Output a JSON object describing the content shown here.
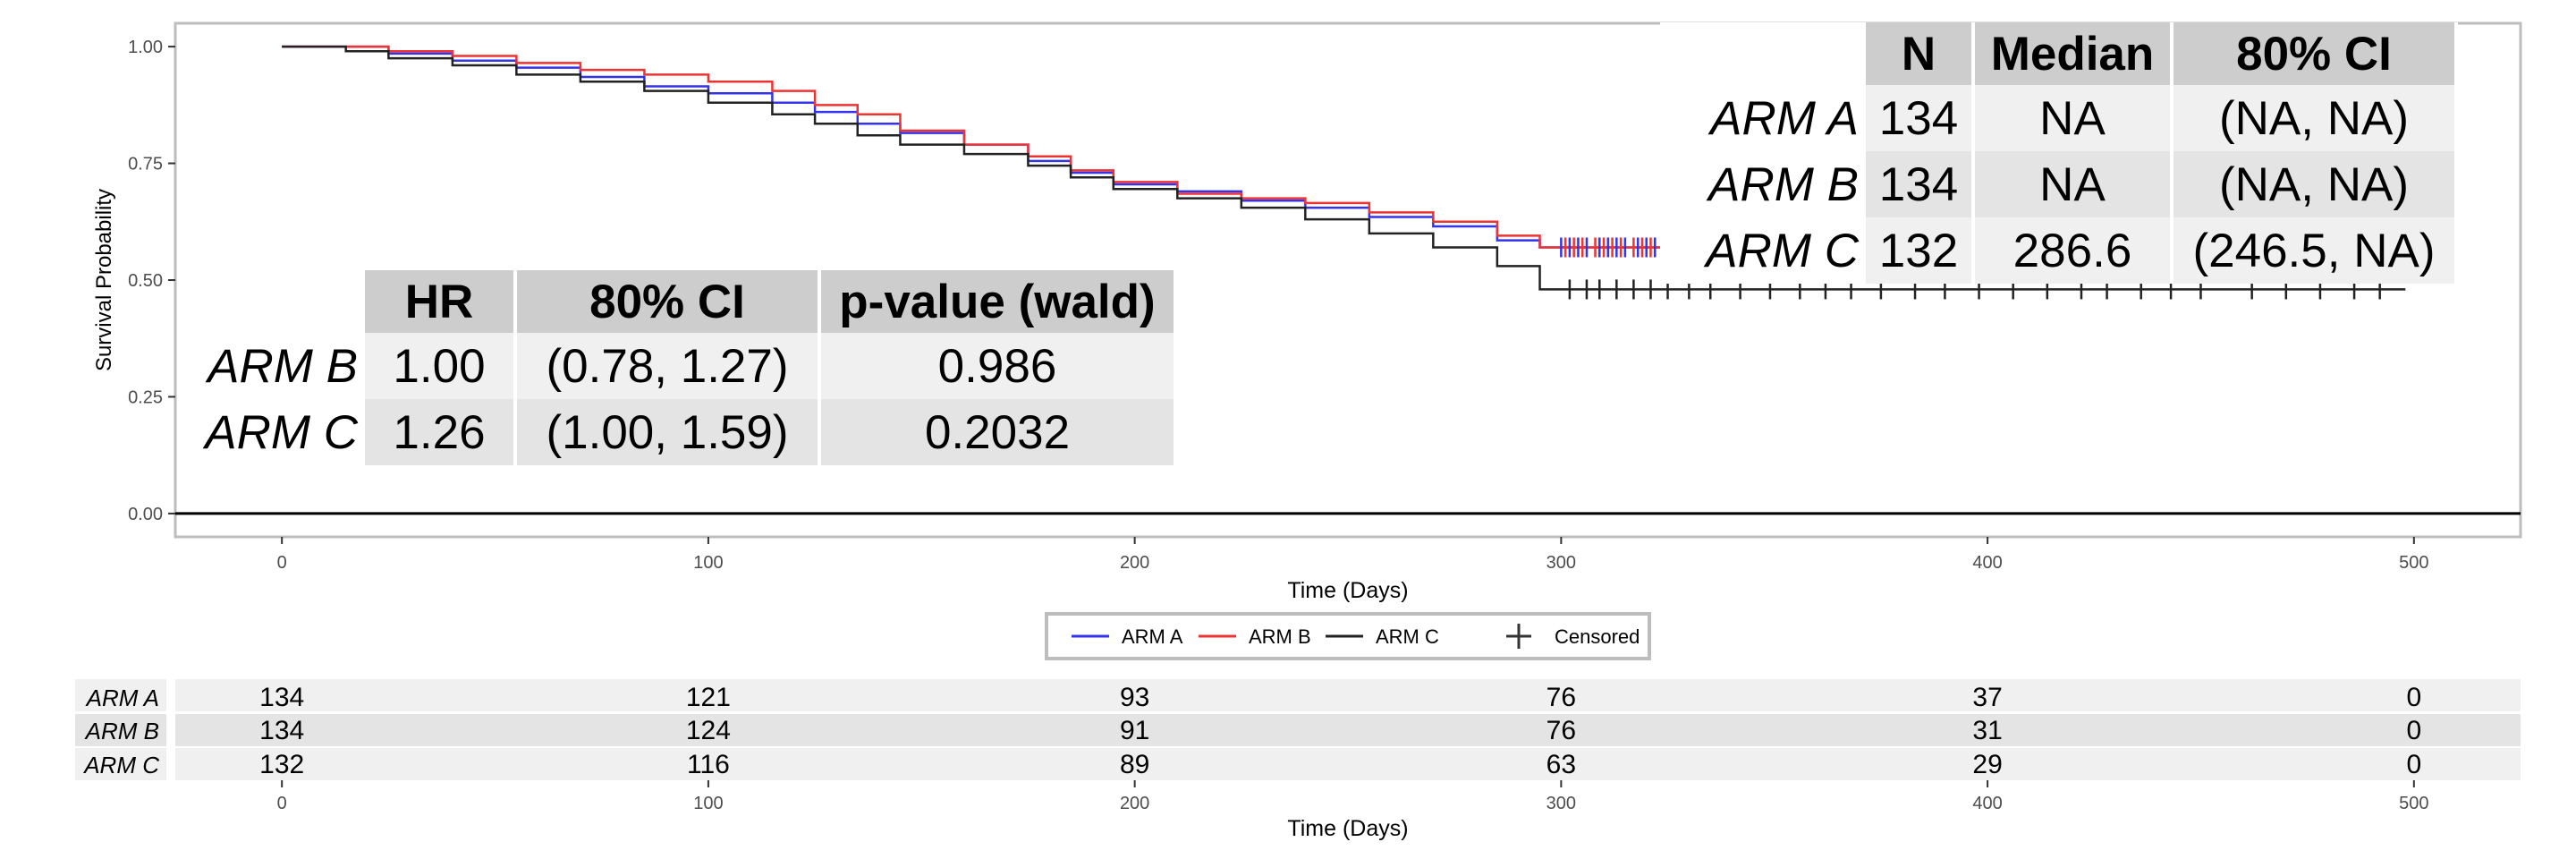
{
  "chart_data": {
    "type": "line",
    "subtype": "kaplan-meier",
    "xlabel": "Time (Days)",
    "ylabel": "Survival Probability",
    "xlim": [
      -25,
      525
    ],
    "ylim": [
      -0.05,
      1.05
    ],
    "x_ticks": [
      0,
      100,
      200,
      300,
      400,
      500
    ],
    "y_ticks": [
      0.0,
      0.25,
      0.5,
      0.75,
      1.0
    ],
    "y_tick_labels": [
      "0.00",
      "0.25",
      "0.50",
      "0.75",
      "1.00"
    ],
    "grid": false,
    "legend": {
      "position": "bottom",
      "entries": [
        {
          "name": "ARM A",
          "color": "#3333ee"
        },
        {
          "name": "ARM B",
          "color": "#ee3333"
        },
        {
          "name": "ARM C",
          "color": "#222222"
        },
        {
          "name": "Censored",
          "marker": "plus"
        }
      ]
    },
    "series": [
      {
        "name": "ARM A",
        "color": "#3333ee",
        "points": [
          [
            0,
            1.0
          ],
          [
            15,
            1.0
          ],
          [
            25,
            0.985
          ],
          [
            40,
            0.97
          ],
          [
            55,
            0.955
          ],
          [
            70,
            0.935
          ],
          [
            85,
            0.915
          ],
          [
            100,
            0.9
          ],
          [
            115,
            0.88
          ],
          [
            125,
            0.86
          ],
          [
            135,
            0.835
          ],
          [
            145,
            0.815
          ],
          [
            160,
            0.79
          ],
          [
            175,
            0.755
          ],
          [
            185,
            0.73
          ],
          [
            195,
            0.705
          ],
          [
            210,
            0.69
          ],
          [
            225,
            0.67
          ],
          [
            240,
            0.655
          ],
          [
            255,
            0.635
          ],
          [
            270,
            0.615
          ],
          [
            285,
            0.585
          ],
          [
            295,
            0.57
          ],
          [
            320,
            0.57
          ],
          [
            368,
            0.57
          ]
        ],
        "censored_x": [
          300,
          302,
          304,
          306,
          309,
          311,
          313,
          315,
          318,
          320,
          322,
          325,
          327,
          329,
          332,
          334,
          337,
          339,
          341,
          344,
          346,
          349,
          352,
          355,
          358,
          361,
          364,
          367
        ]
      },
      {
        "name": "ARM B",
        "color": "#ee3333",
        "points": [
          [
            0,
            1.0
          ],
          [
            15,
            1.0
          ],
          [
            25,
            0.99
          ],
          [
            40,
            0.98
          ],
          [
            55,
            0.965
          ],
          [
            70,
            0.95
          ],
          [
            85,
            0.94
          ],
          [
            100,
            0.925
          ],
          [
            115,
            0.905
          ],
          [
            125,
            0.875
          ],
          [
            135,
            0.855
          ],
          [
            145,
            0.82
          ],
          [
            160,
            0.79
          ],
          [
            175,
            0.765
          ],
          [
            185,
            0.735
          ],
          [
            195,
            0.71
          ],
          [
            210,
            0.685
          ],
          [
            225,
            0.675
          ],
          [
            240,
            0.665
          ],
          [
            255,
            0.645
          ],
          [
            270,
            0.625
          ],
          [
            285,
            0.595
          ],
          [
            295,
            0.57
          ],
          [
            320,
            0.57
          ],
          [
            368,
            0.57
          ]
        ],
        "censored_x": [
          301,
          303,
          305,
          308,
          310,
          312,
          314,
          317,
          319,
          321,
          324,
          326,
          328,
          331,
          333,
          336,
          338,
          340,
          343,
          345,
          348,
          351,
          354,
          357,
          360,
          363,
          366
        ]
      },
      {
        "name": "ARM C",
        "color": "#222222",
        "points": [
          [
            0,
            1.0
          ],
          [
            15,
            0.99
          ],
          [
            25,
            0.975
          ],
          [
            40,
            0.96
          ],
          [
            55,
            0.94
          ],
          [
            70,
            0.925
          ],
          [
            85,
            0.905
          ],
          [
            100,
            0.88
          ],
          [
            115,
            0.855
          ],
          [
            125,
            0.835
          ],
          [
            135,
            0.81
          ],
          [
            145,
            0.79
          ],
          [
            160,
            0.77
          ],
          [
            175,
            0.745
          ],
          [
            185,
            0.72
          ],
          [
            195,
            0.695
          ],
          [
            210,
            0.675
          ],
          [
            225,
            0.655
          ],
          [
            240,
            0.63
          ],
          [
            255,
            0.6
          ],
          [
            270,
            0.57
          ],
          [
            285,
            0.53
          ],
          [
            295,
            0.48
          ],
          [
            320,
            0.48
          ],
          [
            400,
            0.48
          ],
          [
            498,
            0.48
          ]
        ],
        "censored_x": [
          302,
          306,
          309,
          313,
          317,
          321,
          325,
          330,
          335,
          342,
          349,
          356,
          362,
          368,
          375,
          383,
          390,
          398,
          406,
          414,
          422,
          428,
          436,
          443,
          450,
          462,
          470,
          478,
          486,
          492
        ]
      }
    ],
    "median_table": {
      "headers": [
        "N",
        "Median",
        "80% CI"
      ],
      "rows": [
        {
          "arm": "ARM A",
          "n": "134",
          "median": "NA",
          "ci": "(NA, NA)"
        },
        {
          "arm": "ARM B",
          "n": "134",
          "median": "NA",
          "ci": "(NA, NA)"
        },
        {
          "arm": "ARM C",
          "n": "132",
          "median": "286.6",
          "ci": "(246.5, NA)"
        }
      ]
    },
    "cox_table": {
      "headers": [
        "HR",
        "80% CI",
        "p-value (wald)"
      ],
      "rows": [
        {
          "arm": "ARM B",
          "hr": "1.00",
          "ci": "(0.78, 1.27)",
          "p": "0.986"
        },
        {
          "arm": "ARM C",
          "hr": "1.26",
          "ci": "(1.00, 1.59)",
          "p": "0.2032"
        }
      ]
    },
    "risk_table": {
      "xlabel": "Time (Days)",
      "times": [
        0,
        100,
        200,
        300,
        400,
        500
      ],
      "rows": [
        {
          "arm": "ARM A",
          "counts": [
            "134",
            "121",
            "93",
            "76",
            "37",
            "0"
          ]
        },
        {
          "arm": "ARM B",
          "counts": [
            "134",
            "124",
            "91",
            "76",
            "31",
            "0"
          ]
        },
        {
          "arm": "ARM C",
          "counts": [
            "132",
            "116",
            "89",
            "63",
            "29",
            "0"
          ]
        }
      ]
    }
  }
}
